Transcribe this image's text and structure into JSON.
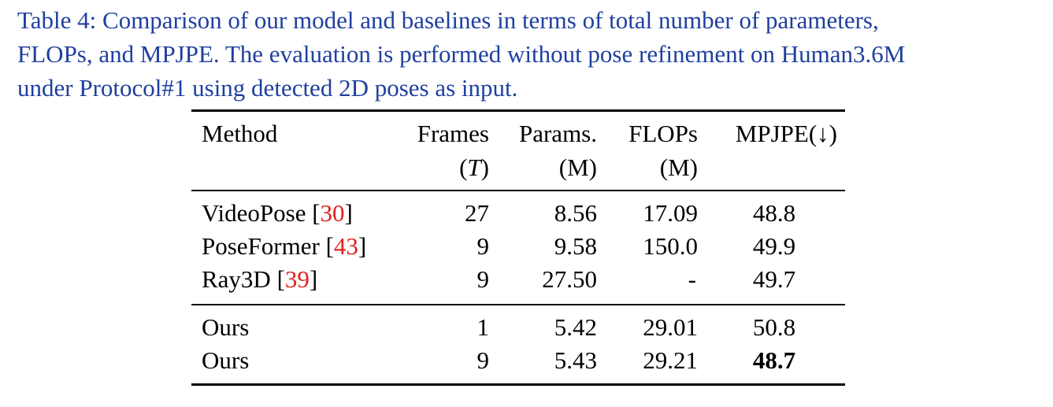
{
  "caption": {
    "line1": "Table 4: Comparison of our model and baselines in terms of total number of parameters,",
    "line2": "FLOPs, and MPJPE. The evaluation is performed without pose refinement on Human3.6M",
    "line3": "under Protocol#1 using detected 2D poses as input."
  },
  "table": {
    "headers": {
      "method": "Method",
      "frames": "Frames",
      "frames_unit_open": "(",
      "frames_unit_var": "T",
      "frames_unit_close": ")",
      "params": "Params.",
      "params_unit": "(M)",
      "flops": "FLOPs",
      "flops_unit": "(M)",
      "mpjpe": "MPJPE(↓)"
    },
    "rows": [
      {
        "method": "VideoPose ",
        "ref_open": "[",
        "ref": "30",
        "ref_close": "]",
        "frames": "27",
        "params": "8.56",
        "flops": "17.09",
        "mpjpe": "48.8"
      },
      {
        "method": "PoseFormer ",
        "ref_open": "[",
        "ref": "43",
        "ref_close": "]",
        "frames": "9",
        "params": "9.58",
        "flops": "150.0",
        "mpjpe": "49.9"
      },
      {
        "method": "Ray3D ",
        "ref_open": "[",
        "ref": "39",
        "ref_close": "]",
        "frames": "9",
        "params": "27.50",
        "flops": "-",
        "mpjpe": "49.7"
      },
      {
        "method": "Ours",
        "frames": "1",
        "params": "5.42",
        "flops": "29.01",
        "mpjpe": "50.8"
      },
      {
        "method": "Ours",
        "frames": "9",
        "params": "5.43",
        "flops": "29.21",
        "mpjpe": "48.7"
      }
    ]
  }
}
